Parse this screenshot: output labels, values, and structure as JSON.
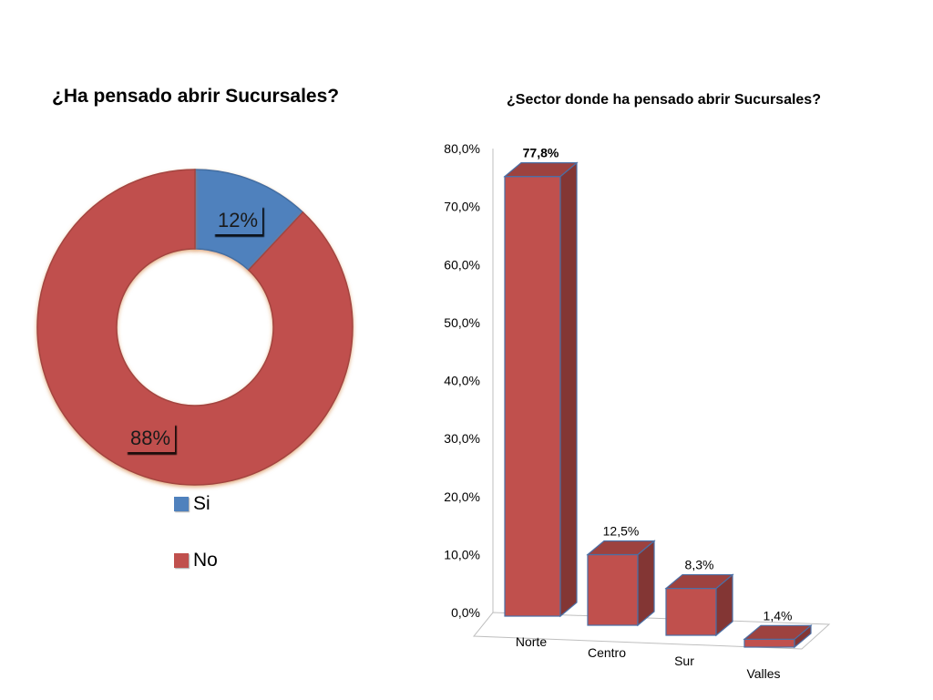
{
  "chart_data": [
    {
      "type": "pie",
      "title": "¿Ha pensado abrir Sucursales?",
      "categories": [
        "Si",
        "No"
      ],
      "values": [
        12,
        88
      ],
      "labels": [
        "12%",
        "88%"
      ],
      "colors": [
        "#4F81BD",
        "#C0504D"
      ],
      "legend": "bottom"
    },
    {
      "type": "bar",
      "title": "¿Sector donde ha pensado abrir Sucursales?",
      "categories": [
        "Norte",
        "Centro",
        "Sur",
        "Valles"
      ],
      "values": [
        77.8,
        12.5,
        8.3,
        1.4
      ],
      "labels": [
        "77,8%",
        "12,5%",
        "8,3%",
        "1,4%"
      ],
      "ylim": [
        0,
        80
      ],
      "yticks": [
        "0,0%",
        "10,0%",
        "20,0%",
        "30,0%",
        "40,0%",
        "50,0%",
        "60,0%",
        "70,0%",
        "80,0%"
      ],
      "color": "#C0504D",
      "grid": false
    }
  ]
}
